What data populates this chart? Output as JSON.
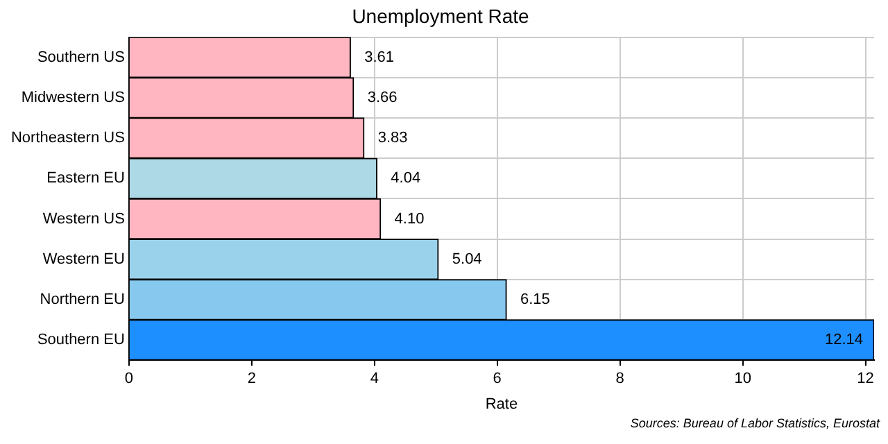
{
  "chart_data": {
    "type": "bar",
    "orientation": "horizontal",
    "title": "Unemployment Rate",
    "xlabel": "Rate",
    "categories": [
      "Southern US",
      "Midwestern US",
      "Northeastern US",
      "Eastern EU",
      "Western US",
      "Western EU",
      "Northern EU",
      "Southern EU"
    ],
    "values": [
      3.61,
      3.66,
      3.83,
      4.04,
      4.1,
      5.04,
      6.15,
      12.14
    ],
    "colors": [
      "#ffb6c1",
      "#ffb6c1",
      "#ffb6c1",
      "#add8e6",
      "#ffb6c1",
      "#9ad2ec",
      "#87c8ee",
      "#1e8fff"
    ],
    "value_labels": [
      "3.61",
      "3.66",
      "3.83",
      "4.04",
      "4.10",
      "5.04",
      "6.15",
      "12.14"
    ],
    "xlim": [
      0,
      12.14
    ],
    "xticks": [
      0,
      2,
      4,
      6,
      8,
      10,
      12
    ],
    "grid": true,
    "legend": false,
    "annotations": [
      "Sources: Bureau of Labor Statistics, Eurostat"
    ]
  }
}
